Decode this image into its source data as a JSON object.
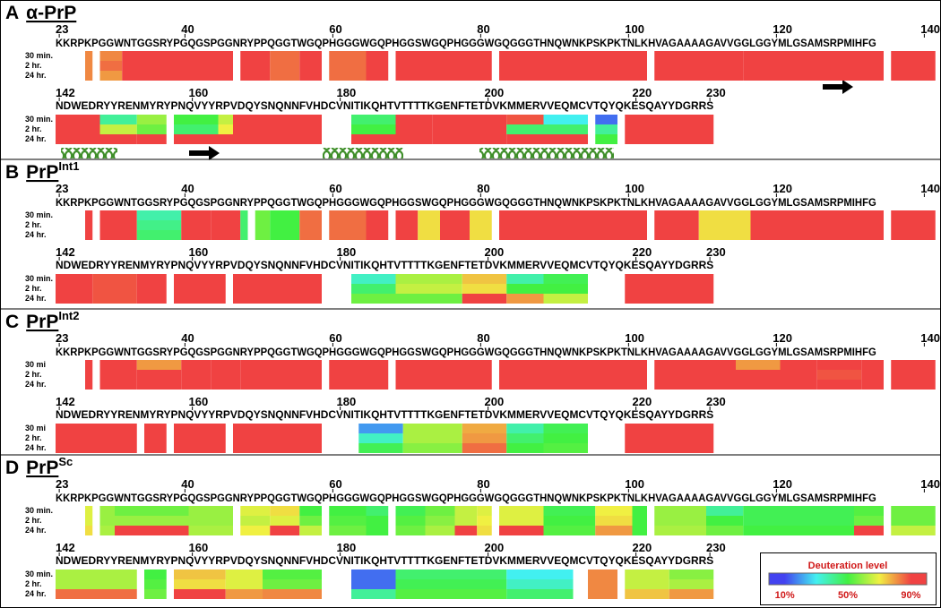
{
  "panels": [
    {
      "letter": "A",
      "title": "α-PrP",
      "times": [
        "30 min.",
        "2 hr.",
        "24 hr."
      ],
      "rows": [
        {
          "ticks": [
            23,
            40,
            60,
            80,
            100,
            120,
            140
          ],
          "sequence": "KKRPKPGGWNTGGSRYPGQGSPGGNRYPPQGGTWGQPHGGGWGQPHGGSWGQPHGGGWGQGGGTHNQWNKPSKPKTNLKHVAGAAAAGAVVGGLGGYMLGSAMSRPMIHFG",
          "segments": [
            [
              27,
              27,
              82,
              82,
              82
            ],
            [
              29,
              31,
              82,
              85,
              80
            ],
            [
              32,
              40,
              95,
              95,
              95
            ],
            [
              41,
              46,
              95,
              95,
              95
            ],
            [
              48,
              51,
              95,
              95,
              95
            ],
            [
              52,
              55,
              85,
              85,
              85
            ],
            [
              56,
              58,
              95,
              95,
              95
            ],
            [
              60,
              64,
              85,
              85,
              85
            ],
            [
              65,
              67,
              95,
              95,
              95
            ],
            [
              69,
              81,
              95,
              95,
              95
            ],
            [
              83,
              100,
              95,
              95,
              95
            ],
            [
              101,
              102,
              95,
              95,
              95
            ],
            [
              104,
              110,
              95,
              95,
              95
            ],
            [
              111,
              115,
              90,
              90,
              90
            ],
            [
              116,
              134,
              95,
              95,
              95
            ],
            [
              136,
              141,
              95,
              95,
              95
            ]
          ]
        },
        {
          "ticks": [
            142,
            160,
            180,
            200,
            220,
            230
          ],
          "sequence": "NDWEDRYYRENMYRYPNQVYYRPVDQYSNQNNFVHDCVNITIKQHTVTTTTKGENFTETDVKMMERVVEQMCVTQYQKESQAYYDGRRS",
          "segments": [
            [
              142,
              147,
              95,
              95,
              95
            ],
            [
              148,
              152,
              40,
              65,
              92
            ],
            [
              153,
              156,
              60,
              55,
              90
            ],
            [
              158,
              163,
              50,
              45,
              92
            ],
            [
              164,
              165,
              65,
              70,
              92
            ],
            [
              166,
              177,
              95,
              95,
              95
            ],
            [
              182,
              187,
              45,
              50,
              95
            ],
            [
              188,
              192,
              90,
              92,
              95
            ],
            [
              193,
              202,
              95,
              95,
              95
            ],
            [
              203,
              207,
              88,
              45,
              95
            ],
            [
              208,
              213,
              30,
              45,
              92
            ],
            [
              215,
              217,
              15,
              40,
              50
            ],
            [
              219,
              230,
              92,
              95,
              95
            ]
          ]
        }
      ]
    },
    {
      "letter": "B",
      "title": "PrP",
      "superscript": "Int1",
      "times": [
        "30 min.",
        "2 hr.",
        "24 hr."
      ],
      "rows": [
        {
          "ticks": [
            23,
            40,
            60,
            80,
            100,
            120,
            140
          ],
          "sequence": "KKRPKPGGWNTGGSRYPGQGSPGGNRYPPQGGTWGQPHGGGWGQPHGGSWGQPHGGGWGQGGGTHNQWNKPSKPKTNLKHVAGAAAAGAVVGGLGGYMLGSAMSRPMIHFG",
          "segments": [
            [
              27,
              27,
              95,
              95,
              95
            ],
            [
              29,
              33,
              95,
              95,
              95
            ],
            [
              34,
              39,
              38,
              42,
              45
            ],
            [
              40,
              43,
              95,
              95,
              95
            ],
            [
              44,
              47,
              95,
              95,
              95
            ],
            [
              48,
              48,
              45,
              45,
              45
            ],
            [
              50,
              51,
              55,
              55,
              55
            ],
            [
              52,
              55,
              50,
              50,
              50
            ],
            [
              56,
              58,
              85,
              85,
              85
            ],
            [
              60,
              64,
              85,
              85,
              85
            ],
            [
              65,
              67,
              95,
              95,
              95
            ],
            [
              69,
              71,
              95,
              95,
              95
            ],
            [
              72,
              74,
              72,
              72,
              72
            ],
            [
              75,
              78,
              95,
              95,
              95
            ],
            [
              79,
              81,
              72,
              72,
              72
            ],
            [
              83,
              100,
              95,
              95,
              95
            ],
            [
              101,
              102,
              95,
              95,
              95
            ],
            [
              104,
              109,
              95,
              95,
              95
            ],
            [
              110,
              116,
              72,
              72,
              72
            ],
            [
              117,
              134,
              95,
              95,
              95
            ],
            [
              136,
              141,
              95,
              95,
              95
            ]
          ]
        },
        {
          "ticks": [
            142,
            160,
            180,
            200,
            220,
            230
          ],
          "sequence": "NDWEDRYYRENMYRYPNQVYYRPVDQYSNQNNFVHDCVNITIKQHTVTTTTKGENFTETDVKMMERVVEQMCVTQYQKESQAYYDGRRS",
          "segments": [
            [
              142,
              146,
              95,
              95,
              95
            ],
            [
              147,
              152,
              88,
              88,
              88
            ],
            [
              153,
              156,
              95,
              95,
              95
            ],
            [
              158,
              164,
              95,
              95,
              95
            ],
            [
              166,
              177,
              95,
              95,
              95
            ],
            [
              182,
              187,
              35,
              45,
              55
            ],
            [
              188,
              196,
              62,
              65,
              55
            ],
            [
              197,
              202,
              75,
              72,
              92
            ],
            [
              203,
              207,
              38,
              50,
              80
            ],
            [
              208,
              213,
              48,
              50,
              65
            ],
            [
              219,
              230,
              95,
              95,
              95
            ]
          ]
        }
      ]
    },
    {
      "letter": "C",
      "title": "PrP",
      "superscript": "Int2",
      "times": [
        "30 mi",
        "2 hr.",
        "24 hr."
      ],
      "rows": [
        {
          "ticks": [
            23,
            40,
            60,
            80,
            100,
            120,
            140
          ],
          "sequence": "KKRPKPGGWNTGGSRYPGQGSPGGNRYPPQGGTWGQPHGGGWGQPHGGSWGQPHGGGWGQGGGTHNQWNKPSKPKTNLKHVAGAAAAGAVVGGLGGYMLGSAMSRPMIHFG",
          "segments": [
            [
              27,
              27,
              95,
              95,
              95
            ],
            [
              29,
              33,
              95,
              95,
              95
            ],
            [
              34,
              39,
              80,
              95,
              95
            ],
            [
              40,
              43,
              90,
              95,
              95
            ],
            [
              44,
              47,
              95,
              95,
              95
            ],
            [
              48,
              58,
              95,
              95,
              95
            ],
            [
              60,
              67,
              95,
              95,
              95
            ],
            [
              69,
              81,
              95,
              95,
              95
            ],
            [
              83,
              100,
              95,
              95,
              95
            ],
            [
              101,
              102,
              95,
              95,
              95
            ],
            [
              104,
              114,
              95,
              95,
              95
            ],
            [
              115,
              120,
              80,
              95,
              95
            ],
            [
              121,
              125,
              95,
              95,
              95
            ],
            [
              126,
              131,
              90,
              88,
              95
            ],
            [
              132,
              134,
              95,
              95,
              95
            ],
            [
              136,
              141,
              95,
              95,
              95
            ]
          ]
        },
        {
          "ticks": [
            142,
            160,
            180,
            200,
            220,
            230
          ],
          "sequence": "NDWEDRYYRENMYRYPNQVYYRPVDQYSNQNNFVHDCVNITIKQHTVTTTTKGENFTETDVKMMERVVEQMCVTQYQKESQAYYDGRRS",
          "segments": [
            [
              142,
              152,
              95,
              95,
              95
            ],
            [
              154,
              156,
              95,
              95,
              95
            ],
            [
              158,
              164,
              95,
              95,
              95
            ],
            [
              166,
              177,
              95,
              95,
              95
            ],
            [
              183,
              188,
              20,
              35,
              48
            ],
            [
              189,
              196,
              62,
              62,
              58
            ],
            [
              197,
              202,
              78,
              80,
              85
            ],
            [
              203,
              207,
              38,
              45,
              50
            ],
            [
              208,
              213,
              48,
              50,
              52
            ],
            [
              219,
              230,
              95,
              95,
              95
            ]
          ]
        }
      ]
    },
    {
      "letter": "D",
      "title": "PrP",
      "superscript": "Sc",
      "times": [
        "30 min.",
        "2 hr.",
        "24 hr."
      ],
      "rows": [
        {
          "ticks": [
            23,
            40,
            60,
            80,
            100,
            120,
            140
          ],
          "sequence": "KKRPKPGGWNTGGSRYPGQGSPGGNRYPPQGGTWGQPHGGGWGQPHGGSWGQPHGGGWGQGGGTHNQWNKPSKPKTNLKHVAGAAAAGAVVGGLGGYMLGSAMSRPMIHFG",
          "segments": [
            [
              27,
              27,
              68,
              68,
              72
            ],
            [
              29,
              30,
              60,
              60,
              62
            ],
            [
              31,
              40,
              55,
              60,
              92
            ],
            [
              41,
              46,
              60,
              60,
              62
            ],
            [
              48,
              51,
              68,
              65,
              70
            ],
            [
              52,
              55,
              72,
              68,
              90
            ],
            [
              56,
              58,
              50,
              55,
              65
            ],
            [
              60,
              64,
              50,
              52,
              55
            ],
            [
              65,
              67,
              45,
              50,
              50
            ],
            [
              69,
              72,
              48,
              52,
              55
            ],
            [
              73,
              76,
              55,
              58,
              62
            ],
            [
              77,
              79,
              65,
              65,
              90
            ],
            [
              80,
              81,
              68,
              70,
              72
            ],
            [
              83,
              88,
              68,
              68,
              92
            ],
            [
              89,
              95,
              48,
              50,
              52
            ],
            [
              96,
              100,
              70,
              72,
              80
            ],
            [
              101,
              102,
              50,
              50,
              50
            ],
            [
              104,
              110,
              60,
              60,
              62
            ],
            [
              111,
              115,
              40,
              50,
              55
            ],
            [
              116,
              130,
              48,
              48,
              50
            ],
            [
              131,
              134,
              52,
              55,
              90
            ],
            [
              136,
              141,
              55,
              55,
              65
            ]
          ]
        },
        {
          "ticks": [
            142,
            160,
            180,
            200,
            220,
            230
          ],
          "sequence": "NDWEDRYYRENMYRYPNQVYYRPVDQYSNQNNFVHDCVNITIKQHTVTTTTKGENFTETDVKMMERVVEQMCVTQYQKESQAYYDGRRS",
          "segments": [
            [
              142,
              152,
              62,
              62,
              85
            ],
            [
              154,
              156,
              50,
              52,
              55
            ],
            [
              158,
              164,
              75,
              72,
              90
            ],
            [
              165,
              169,
              68,
              68,
              80
            ],
            [
              170,
              177,
              52,
              55,
              82
            ],
            [
              182,
              187,
              15,
              15,
              40
            ],
            [
              188,
              202,
              45,
              48,
              52
            ],
            [
              203,
              211,
              30,
              35,
              45
            ],
            [
              214,
              217,
              82,
              82,
              82
            ],
            [
              219,
              224,
              65,
              65,
              75
            ],
            [
              225,
              230,
              58,
              62,
              80
            ]
          ]
        }
      ]
    }
  ],
  "legend": {
    "title": "Deuteration level",
    "range": [
      0,
      100
    ],
    "ticks": [
      {
        "value": 10,
        "label": "10%"
      },
      {
        "value": 50,
        "label": "50%"
      },
      {
        "value": 90,
        "label": "90%"
      }
    ]
  }
}
